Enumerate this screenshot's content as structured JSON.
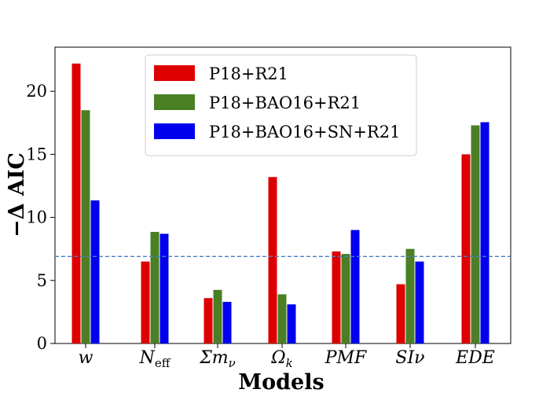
{
  "chart_data": {
    "type": "bar",
    "categories": [
      "w",
      "N_eff",
      "Σm_ν",
      "Ω_k",
      "PMF",
      "SIν",
      "EDE"
    ],
    "category_display": [
      {
        "main": "w",
        "sub": ""
      },
      {
        "main": "N",
        "sub": "eff"
      },
      {
        "main": "Σm",
        "sub": "ν"
      },
      {
        "main": "Ω",
        "sub": "k"
      },
      {
        "main": "PMF",
        "sub": ""
      },
      {
        "main": "SIν",
        "sub": ""
      },
      {
        "main": "EDE",
        "sub": ""
      }
    ],
    "series": [
      {
        "name": "P18+R21",
        "color": "#dd0000",
        "values": [
          22.2,
          6.5,
          3.6,
          13.2,
          7.3,
          4.7,
          15.0
        ]
      },
      {
        "name": "P18+BAO16+R21",
        "color": "#4a7f24",
        "values": [
          18.5,
          8.85,
          4.25,
          3.9,
          7.1,
          7.5,
          17.3
        ]
      },
      {
        "name": "P18+BAO16+SN+R21",
        "color": "#0000ee",
        "values": [
          11.35,
          8.7,
          3.3,
          3.1,
          9.0,
          6.5,
          17.55
        ]
      }
    ],
    "xlabel": "Models",
    "ylabel": "−Δ AIC",
    "ylim": [
      0,
      23.5
    ],
    "yticks": [
      0,
      5,
      10,
      15,
      20
    ],
    "reference_line": {
      "y": 6.9,
      "style": "dashed",
      "color": "#4a7fc0"
    },
    "legend_position": "top-center",
    "grid": false
  }
}
